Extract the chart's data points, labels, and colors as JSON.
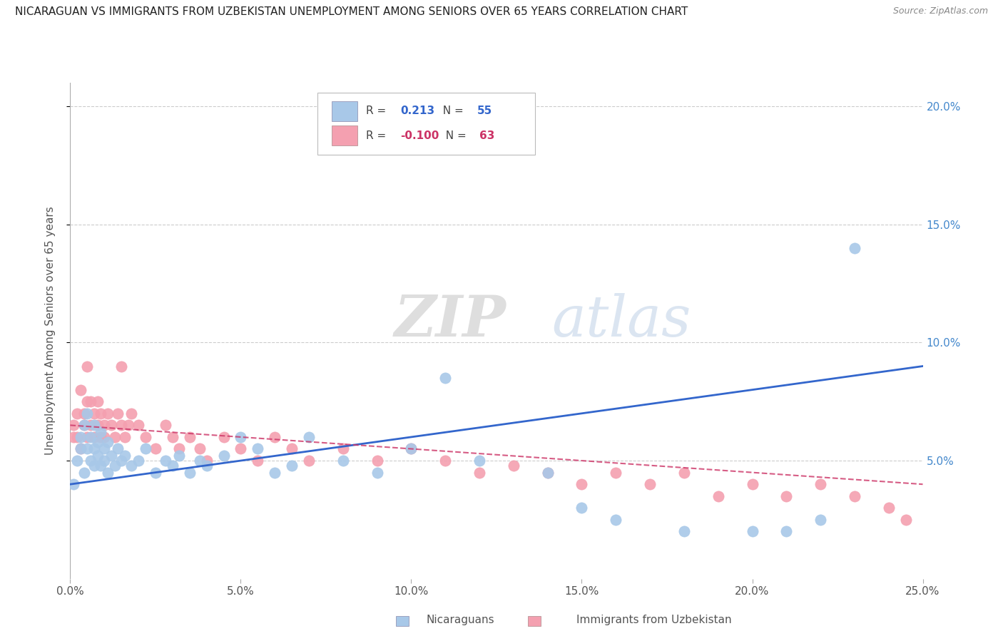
{
  "title": "NICARAGUAN VS IMMIGRANTS FROM UZBEKISTAN UNEMPLOYMENT AMONG SENIORS OVER 65 YEARS CORRELATION CHART",
  "source": "Source: ZipAtlas.com",
  "ylabel": "Unemployment Among Seniors over 65 years",
  "xlabel_nicaraguans": "Nicaraguans",
  "xlabel_uzbekistan": "Immigrants from Uzbekistan",
  "xmin": 0.0,
  "xmax": 0.25,
  "ymin": 0.0,
  "ymax": 0.21,
  "yticks": [
    0.05,
    0.1,
    0.15,
    0.2
  ],
  "ytick_labels": [
    "5.0%",
    "10.0%",
    "15.0%",
    "20.0%"
  ],
  "xticks": [
    0.0,
    0.05,
    0.1,
    0.15,
    0.2,
    0.25
  ],
  "xtick_labels": [
    "0.0%",
    "5.0%",
    "10.0%",
    "15.0%",
    "20.0%",
    "25.0%"
  ],
  "blue_R": "0.213",
  "blue_N": "55",
  "pink_R": "-0.100",
  "pink_N": "63",
  "blue_color": "#a8c8e8",
  "pink_color": "#f4a0b0",
  "blue_line_color": "#3366cc",
  "pink_line_color": "#cc3366",
  "watermark_zip": "ZIP",
  "watermark_atlas": "atlas",
  "nicaraguan_x": [
    0.001,
    0.002,
    0.003,
    0.003,
    0.004,
    0.004,
    0.005,
    0.005,
    0.006,
    0.006,
    0.007,
    0.007,
    0.007,
    0.008,
    0.008,
    0.009,
    0.009,
    0.01,
    0.01,
    0.011,
    0.011,
    0.012,
    0.013,
    0.014,
    0.015,
    0.016,
    0.018,
    0.02,
    0.022,
    0.025,
    0.028,
    0.03,
    0.032,
    0.035,
    0.038,
    0.04,
    0.045,
    0.05,
    0.055,
    0.06,
    0.065,
    0.07,
    0.08,
    0.09,
    0.1,
    0.11,
    0.12,
    0.14,
    0.15,
    0.16,
    0.18,
    0.2,
    0.21,
    0.22,
    0.23
  ],
  "nicaraguan_y": [
    0.04,
    0.05,
    0.055,
    0.06,
    0.045,
    0.065,
    0.055,
    0.07,
    0.05,
    0.06,
    0.048,
    0.055,
    0.065,
    0.052,
    0.058,
    0.048,
    0.062,
    0.05,
    0.055,
    0.045,
    0.058,
    0.052,
    0.048,
    0.055,
    0.05,
    0.052,
    0.048,
    0.05,
    0.055,
    0.045,
    0.05,
    0.048,
    0.052,
    0.045,
    0.05,
    0.048,
    0.052,
    0.06,
    0.055,
    0.045,
    0.048,
    0.06,
    0.05,
    0.045,
    0.055,
    0.085,
    0.05,
    0.045,
    0.03,
    0.025,
    0.02,
    0.02,
    0.02,
    0.025,
    0.14
  ],
  "uzbekistan_x": [
    0.001,
    0.001,
    0.002,
    0.002,
    0.003,
    0.003,
    0.004,
    0.004,
    0.005,
    0.005,
    0.005,
    0.006,
    0.006,
    0.007,
    0.007,
    0.008,
    0.008,
    0.009,
    0.009,
    0.01,
    0.01,
    0.011,
    0.012,
    0.013,
    0.014,
    0.015,
    0.015,
    0.016,
    0.017,
    0.018,
    0.02,
    0.022,
    0.025,
    0.028,
    0.03,
    0.032,
    0.035,
    0.038,
    0.04,
    0.045,
    0.05,
    0.055,
    0.06,
    0.065,
    0.07,
    0.08,
    0.09,
    0.1,
    0.11,
    0.12,
    0.13,
    0.14,
    0.15,
    0.16,
    0.17,
    0.18,
    0.19,
    0.2,
    0.21,
    0.22,
    0.23,
    0.24,
    0.245
  ],
  "uzbekistan_y": [
    0.065,
    0.06,
    0.07,
    0.06,
    0.08,
    0.055,
    0.065,
    0.07,
    0.075,
    0.06,
    0.09,
    0.065,
    0.075,
    0.07,
    0.06,
    0.065,
    0.075,
    0.06,
    0.07,
    0.065,
    0.06,
    0.07,
    0.065,
    0.06,
    0.07,
    0.065,
    0.09,
    0.06,
    0.065,
    0.07,
    0.065,
    0.06,
    0.055,
    0.065,
    0.06,
    0.055,
    0.06,
    0.055,
    0.05,
    0.06,
    0.055,
    0.05,
    0.06,
    0.055,
    0.05,
    0.055,
    0.05,
    0.055,
    0.05,
    0.045,
    0.048,
    0.045,
    0.04,
    0.045,
    0.04,
    0.045,
    0.035,
    0.04,
    0.035,
    0.04,
    0.035,
    0.03,
    0.025
  ],
  "blue_line_x0": 0.0,
  "blue_line_y0": 0.04,
  "blue_line_x1": 0.25,
  "blue_line_y1": 0.09,
  "pink_line_x0": 0.0,
  "pink_line_y0": 0.065,
  "pink_line_x1": 0.25,
  "pink_line_y1": 0.04
}
